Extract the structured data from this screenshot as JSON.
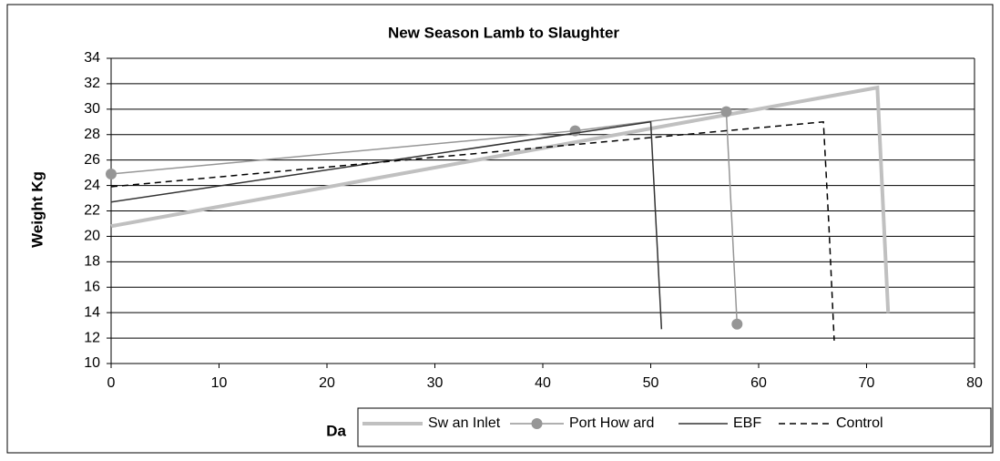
{
  "chart_data": {
    "type": "line",
    "title": "New Season Lamb to Slaughter",
    "y_label": "Weight Kg",
    "x_label": "Da",
    "xlim": [
      0,
      80
    ],
    "xticks": [
      0,
      10,
      20,
      30,
      40,
      50,
      60,
      70,
      80
    ],
    "ylim": [
      10,
      34
    ],
    "yticks": [
      10,
      12,
      14,
      16,
      18,
      20,
      22,
      24,
      26,
      28,
      30,
      32,
      34
    ],
    "grid": true,
    "legend": "bottom",
    "series": [
      {
        "name": "Sw an Inlet",
        "color": "#c0c0c0",
        "x": [
          0,
          71,
          72
        ],
        "values": [
          20.8,
          31.7,
          14
        ]
      },
      {
        "name": "Port How ard",
        "color": "#969696",
        "marker": "circle",
        "x": [
          0,
          43,
          57,
          58
        ],
        "values": [
          24.9,
          28.3,
          29.8,
          13.1
        ]
      },
      {
        "name": "EBF",
        "color": "#333333",
        "x": [
          0,
          50,
          51
        ],
        "values": [
          22.7,
          29,
          12.7
        ]
      },
      {
        "name": "Control",
        "color": "#000000",
        "dash": true,
        "x": [
          0,
          66,
          66.5,
          67
        ],
        "values": [
          23.9,
          29,
          21,
          11.8
        ]
      }
    ]
  }
}
